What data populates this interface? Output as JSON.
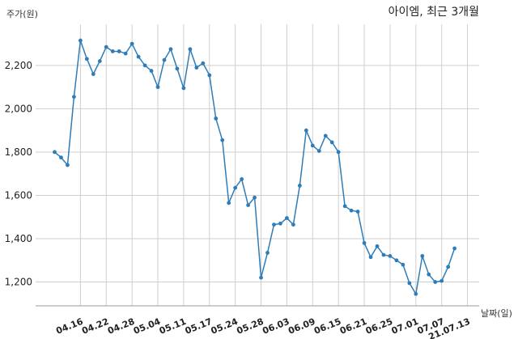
{
  "chart_data": {
    "type": "line",
    "title": "아이엠, 최근 3개월",
    "ylabel": "주가(원)",
    "xlabel": "날짜(일)",
    "ylim": [
      1090,
      2390
    ],
    "yticks": [
      1200,
      1400,
      1600,
      1800,
      2000,
      2200
    ],
    "ytick_labels": [
      "1,200",
      "1,400",
      "1,600",
      "1,800",
      "2,000",
      "2,200"
    ],
    "grid": true,
    "line_color": "#2e7db8",
    "grid_color": "#cfcfcf",
    "xtick_labels": [
      {
        "label": "04.16",
        "index": 4
      },
      {
        "label": "04.22",
        "index": 8
      },
      {
        "label": "04.28",
        "index": 12
      },
      {
        "label": "05.04",
        "index": 16
      },
      {
        "label": "05.11",
        "index": 20
      },
      {
        "label": "05.17",
        "index": 24
      },
      {
        "label": "05.24",
        "index": 28
      },
      {
        "label": "05.28",
        "index": 32
      },
      {
        "label": "06.03",
        "index": 36
      },
      {
        "label": "06.09",
        "index": 40
      },
      {
        "label": "06.15",
        "index": 44
      },
      {
        "label": "06.21",
        "index": 48
      },
      {
        "label": "06.25",
        "index": 52
      },
      {
        "label": "07.01",
        "index": 56
      },
      {
        "label": "07.07",
        "index": 60
      },
      {
        "label": "21.07.13",
        "index": 64
      }
    ],
    "series": [
      {
        "values": [
          1800,
          1775,
          1740,
          2055,
          2315,
          2230,
          2160,
          2220,
          2285,
          2265,
          2265,
          2255,
          2300,
          2240,
          2200,
          2175,
          2100,
          2225,
          2275,
          2185,
          2095,
          2275,
          2190,
          2210,
          2155,
          1955,
          1855,
          1565,
          1635,
          1675,
          1555,
          1590,
          1220,
          1335,
          1465,
          1470,
          1495,
          1465,
          1645,
          1900,
          1830,
          1805,
          1875,
          1845,
          1800,
          1550,
          1530,
          1525,
          1380,
          1315,
          1365,
          1325,
          1320,
          1300,
          1280,
          1195,
          1145,
          1320,
          1235,
          1200,
          1205,
          1270,
          1355
        ]
      }
    ]
  }
}
